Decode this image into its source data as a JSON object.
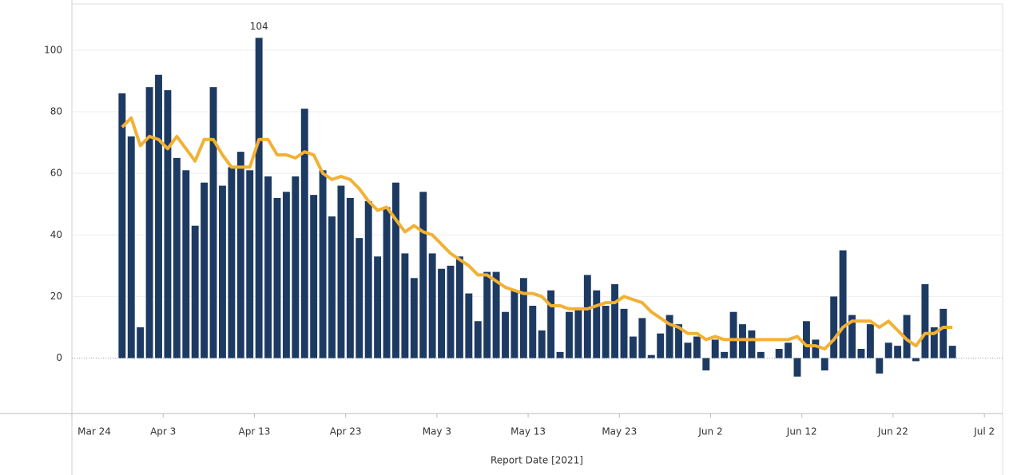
{
  "chart_data": {
    "type": "bar-line",
    "xlabel": "Report Date [2021]",
    "x": [
      "2021-03-29",
      "2021-03-30",
      "2021-03-31",
      "2021-04-01",
      "2021-04-02",
      "2021-04-03",
      "2021-04-04",
      "2021-04-05",
      "2021-04-06",
      "2021-04-07",
      "2021-04-08",
      "2021-04-09",
      "2021-04-10",
      "2021-04-11",
      "2021-04-12",
      "2021-04-13",
      "2021-04-14",
      "2021-04-15",
      "2021-04-16",
      "2021-04-17",
      "2021-04-18",
      "2021-04-19",
      "2021-04-20",
      "2021-04-21",
      "2021-04-22",
      "2021-04-23",
      "2021-04-24",
      "2021-04-25",
      "2021-04-26",
      "2021-04-27",
      "2021-04-28",
      "2021-04-29",
      "2021-04-30",
      "2021-05-01",
      "2021-05-02",
      "2021-05-03",
      "2021-05-04",
      "2021-05-05",
      "2021-05-06",
      "2021-05-07",
      "2021-05-08",
      "2021-05-09",
      "2021-05-10",
      "2021-05-11",
      "2021-05-12",
      "2021-05-13",
      "2021-05-14",
      "2021-05-15",
      "2021-05-16",
      "2021-05-17",
      "2021-05-18",
      "2021-05-19",
      "2021-05-20",
      "2021-05-21",
      "2021-05-22",
      "2021-05-23",
      "2021-05-24",
      "2021-05-25",
      "2021-05-26",
      "2021-05-27",
      "2021-05-28",
      "2021-05-29",
      "2021-05-30",
      "2021-05-31",
      "2021-06-01",
      "2021-06-02",
      "2021-06-03",
      "2021-06-04",
      "2021-06-05",
      "2021-06-06",
      "2021-06-07",
      "2021-06-08",
      "2021-06-09",
      "2021-06-10",
      "2021-06-11",
      "2021-06-12",
      "2021-06-13",
      "2021-06-14",
      "2021-06-15",
      "2021-06-16",
      "2021-06-17",
      "2021-06-18",
      "2021-06-19",
      "2021-06-20",
      "2021-06-21",
      "2021-06-22",
      "2021-06-23",
      "2021-06-24",
      "2021-06-25",
      "2021-06-26",
      "2021-06-27",
      "2021-06-28"
    ],
    "series": [
      {
        "type": "bar",
        "color": "#1d3a63",
        "values": [
          86,
          72,
          10,
          88,
          92,
          87,
          65,
          61,
          43,
          57,
          88,
          56,
          62,
          67,
          61,
          104,
          59,
          52,
          54,
          59,
          81,
          53,
          61,
          46,
          56,
          52,
          39,
          51,
          33,
          49,
          57,
          34,
          26,
          54,
          34,
          29,
          30,
          33,
          21,
          12,
          28,
          28,
          15,
          22,
          26,
          17,
          9,
          22,
          2,
          15,
          16,
          27,
          22,
          17,
          24,
          16,
          7,
          13,
          1,
          8,
          14,
          11,
          5,
          7,
          -4,
          6,
          2,
          15,
          11,
          9,
          2,
          0,
          3,
          5,
          -6,
          12,
          6,
          -4,
          20,
          35,
          14,
          3,
          11,
          -5,
          5,
          4,
          14,
          -1,
          24,
          10,
          16,
          4
        ]
      },
      {
        "type": "line",
        "color": "#f2b134",
        "values": [
          75,
          78,
          69,
          72,
          71,
          68,
          72,
          68,
          64,
          71,
          71,
          66,
          62,
          62,
          62,
          71,
          71,
          66,
          66,
          65,
          67,
          66,
          60,
          58,
          59,
          58,
          55,
          51,
          48,
          49,
          45,
          41,
          43,
          41,
          40,
          37,
          34,
          32,
          30,
          27,
          27,
          25,
          23,
          22,
          21,
          21,
          20,
          17,
          17,
          16,
          16,
          16,
          17,
          18,
          18,
          20,
          19,
          18,
          15,
          13,
          11,
          10,
          8,
          8,
          6,
          7,
          6,
          6,
          6,
          6,
          6,
          6,
          6,
          6,
          7,
          4,
          4,
          3,
          6,
          10,
          12,
          12,
          12,
          10,
          12,
          9,
          6,
          4,
          8,
          8,
          10,
          10
        ]
      }
    ],
    "value_labelled": [
      15
    ],
    "xlim": [
      "2021-03-24",
      "2021-07-04"
    ],
    "xticks": [
      {
        "value": "2021-03-24",
        "label": "Mar 24"
      },
      {
        "value": "2021-04-03",
        "label": "Apr 3"
      },
      {
        "value": "2021-04-13",
        "label": "Apr 13"
      },
      {
        "value": "2021-04-23",
        "label": "Apr 23"
      },
      {
        "value": "2021-05-03",
        "label": "May 3"
      },
      {
        "value": "2021-05-13",
        "label": "May 13"
      },
      {
        "value": "2021-05-23",
        "label": "May 23"
      },
      {
        "value": "2021-06-02",
        "label": "Jun 2"
      },
      {
        "value": "2021-06-12",
        "label": "Jun 12"
      },
      {
        "value": "2021-06-22",
        "label": "Jun 22"
      },
      {
        "value": "2021-07-02",
        "label": "Jul 2"
      }
    ],
    "ylim": [
      -18,
      115
    ],
    "yticks": [
      0,
      20,
      40,
      60,
      80,
      100
    ],
    "grid": true
  }
}
